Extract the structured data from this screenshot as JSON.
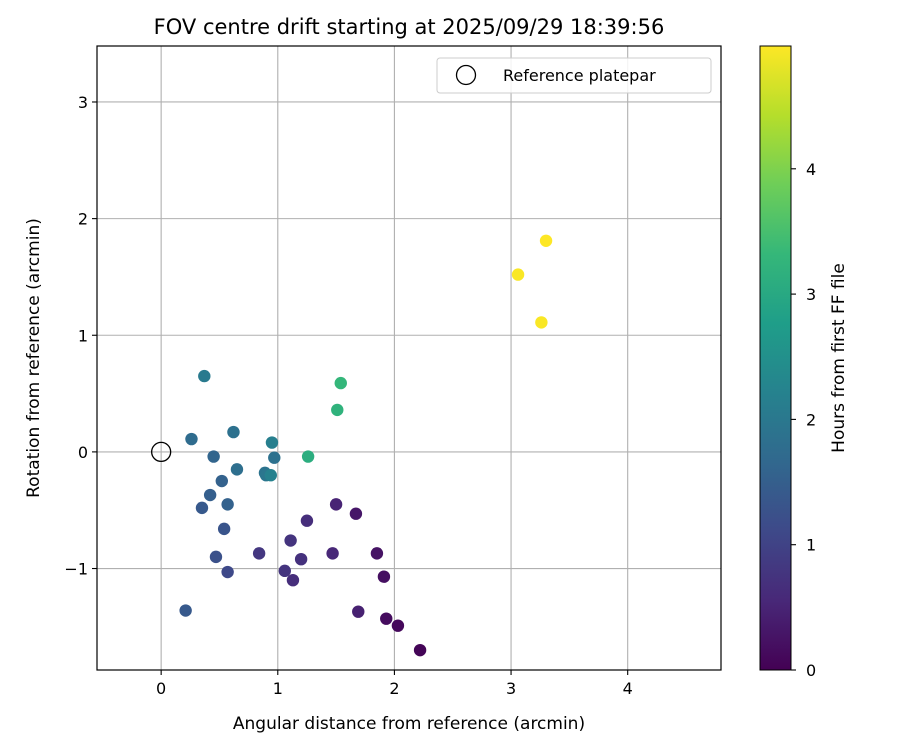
{
  "chart_data": {
    "type": "scatter",
    "title": "FOV centre drift starting at 2025/09/29 18:39:56",
    "xlabel": "Angular distance from reference (arcmin)",
    "ylabel": "Rotation from reference (arcmin)",
    "xlim": [
      -0.55,
      4.8
    ],
    "ylim": [
      -1.87,
      3.48
    ],
    "xticks": [
      0,
      1,
      2,
      3,
      4
    ],
    "yticks": [
      -1,
      0,
      1,
      2,
      3
    ],
    "xtick_labels": [
      "0",
      "1",
      "2",
      "3",
      "4"
    ],
    "ytick_labels": [
      "−1",
      "0",
      "1",
      "2",
      "3"
    ],
    "grid": true,
    "legend": {
      "position": "top-right",
      "entries": [
        "Reference platepar"
      ]
    },
    "reference_point": {
      "x": 0,
      "y": 0,
      "label": "Reference platepar"
    },
    "colorbar": {
      "label": "Hours from first FF file",
      "range": [
        0,
        4.98
      ],
      "ticks": [
        0,
        1,
        2,
        3,
        4
      ],
      "tick_labels": [
        "0",
        "1",
        "2",
        "3",
        "4"
      ],
      "colormap": "viridis"
    },
    "points": [
      {
        "x": 2.22,
        "y": -1.7,
        "hours": 0.05
      },
      {
        "x": 2.03,
        "y": -1.49,
        "hours": 0.1
      },
      {
        "x": 1.93,
        "y": -1.43,
        "hours": 0.15
      },
      {
        "x": 1.91,
        "y": -1.07,
        "hours": 0.2
      },
      {
        "x": 1.85,
        "y": -0.87,
        "hours": 0.25
      },
      {
        "x": 1.67,
        "y": -0.53,
        "hours": 0.3
      },
      {
        "x": 1.69,
        "y": -1.37,
        "hours": 0.45
      },
      {
        "x": 1.5,
        "y": -0.45,
        "hours": 0.5
      },
      {
        "x": 1.47,
        "y": -0.87,
        "hours": 0.55
      },
      {
        "x": 1.25,
        "y": -0.59,
        "hours": 0.65
      },
      {
        "x": 1.13,
        "y": -1.1,
        "hours": 0.65
      },
      {
        "x": 1.2,
        "y": -0.92,
        "hours": 0.7
      },
      {
        "x": 1.06,
        "y": -1.02,
        "hours": 0.75
      },
      {
        "x": 1.11,
        "y": -0.76,
        "hours": 0.75
      },
      {
        "x": 0.84,
        "y": -0.87,
        "hours": 0.8
      },
      {
        "x": 0.57,
        "y": -1.03,
        "hours": 1.1
      },
      {
        "x": 0.47,
        "y": -0.9,
        "hours": 1.25
      },
      {
        "x": 0.54,
        "y": -0.66,
        "hours": 1.3
      },
      {
        "x": 0.21,
        "y": -1.36,
        "hours": 1.4
      },
      {
        "x": 0.35,
        "y": -0.48,
        "hours": 1.4
      },
      {
        "x": 0.42,
        "y": -0.37,
        "hours": 1.5
      },
      {
        "x": 0.57,
        "y": -0.45,
        "hours": 1.55
      },
      {
        "x": 0.52,
        "y": -0.25,
        "hours": 1.55
      },
      {
        "x": 0.45,
        "y": -0.04,
        "hours": 1.6
      },
      {
        "x": 0.26,
        "y": 0.11,
        "hours": 1.75
      },
      {
        "x": 0.65,
        "y": -0.15,
        "hours": 1.8
      },
      {
        "x": 0.62,
        "y": 0.17,
        "hours": 1.85
      },
      {
        "x": 0.97,
        "y": -0.05,
        "hours": 1.85
      },
      {
        "x": 0.89,
        "y": -0.18,
        "hours": 1.9
      },
      {
        "x": 0.9,
        "y": -0.2,
        "hours": 1.95
      },
      {
        "x": 0.37,
        "y": 0.65,
        "hours": 2.05
      },
      {
        "x": 0.95,
        "y": 0.08,
        "hours": 2.15
      },
      {
        "x": 0.94,
        "y": -0.2,
        "hours": 2.2
      },
      {
        "x": 1.26,
        "y": -0.04,
        "hours": 3.1
      },
      {
        "x": 1.51,
        "y": 0.36,
        "hours": 3.2
      },
      {
        "x": 1.54,
        "y": 0.59,
        "hours": 3.3
      },
      {
        "x": 3.06,
        "y": 1.52,
        "hours": 4.95
      },
      {
        "x": 3.26,
        "y": 1.11,
        "hours": 4.95
      },
      {
        "x": 3.3,
        "y": 1.81,
        "hours": 4.98
      }
    ]
  }
}
